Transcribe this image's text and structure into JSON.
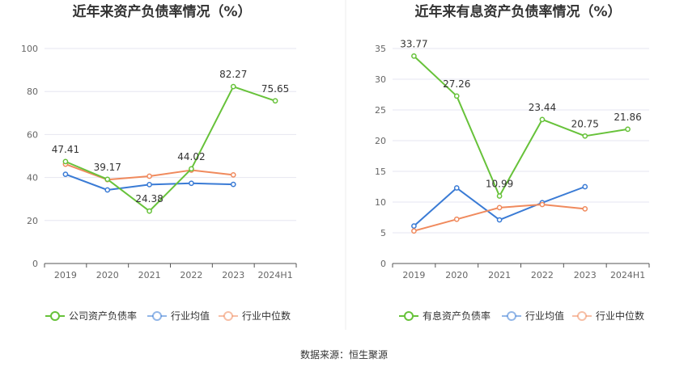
{
  "source": "数据来源：恒生聚源",
  "colors": {
    "company": "#67c23a",
    "industry_avg": "#3a7bd5",
    "industry_median": "#f08a5d",
    "grid": "#e6e6f0",
    "axis": "#555555",
    "divider": "#eeeeee"
  },
  "chart_data": [
    {
      "type": "line",
      "title": "近年来资产负债率情况（%）",
      "categories": [
        "2019",
        "2020",
        "2021",
        "2022",
        "2023",
        "2024H1"
      ],
      "ylim": [
        0,
        100
      ],
      "yticks": [
        0,
        20,
        40,
        60,
        80,
        100
      ],
      "grid": true,
      "legend_position": "bottom",
      "series": [
        {
          "name": "公司资产负债率",
          "color_key": "company",
          "values": [
            47.41,
            39.17,
            24.38,
            44.02,
            82.27,
            75.65
          ],
          "labels": [
            "47.41",
            "39.17",
            "24.38",
            "44.02",
            "82.27",
            "75.65"
          ]
        },
        {
          "name": "行业均值",
          "color_key": "industry_avg",
          "values": [
            41.5,
            34.2,
            36.7,
            37.3,
            36.8,
            null
          ]
        },
        {
          "name": "行业中位数",
          "color_key": "industry_median",
          "values": [
            46.2,
            39.0,
            40.6,
            43.4,
            41.2,
            null
          ]
        }
      ]
    },
    {
      "type": "line",
      "title": "近年来有息资产负债率情况（%）",
      "categories": [
        "2019",
        "2020",
        "2021",
        "2022",
        "2023",
        "2024H1"
      ],
      "ylim": [
        0,
        35
      ],
      "yticks": [
        0,
        5,
        10,
        15,
        20,
        25,
        30,
        35
      ],
      "grid": true,
      "legend_position": "bottom",
      "series": [
        {
          "name": "有息资产负债率",
          "color_key": "company",
          "values": [
            33.77,
            27.26,
            10.99,
            23.44,
            20.75,
            21.86
          ],
          "labels": [
            "33.77",
            "27.26",
            "10.99",
            "23.44",
            "20.75",
            "21.86"
          ]
        },
        {
          "name": "行业均值",
          "color_key": "industry_avg",
          "values": [
            6.1,
            12.3,
            7.1,
            9.9,
            12.5,
            null
          ]
        },
        {
          "name": "行业中位数",
          "color_key": "industry_median",
          "values": [
            5.3,
            7.2,
            9.1,
            9.6,
            8.9,
            null
          ]
        }
      ]
    }
  ]
}
